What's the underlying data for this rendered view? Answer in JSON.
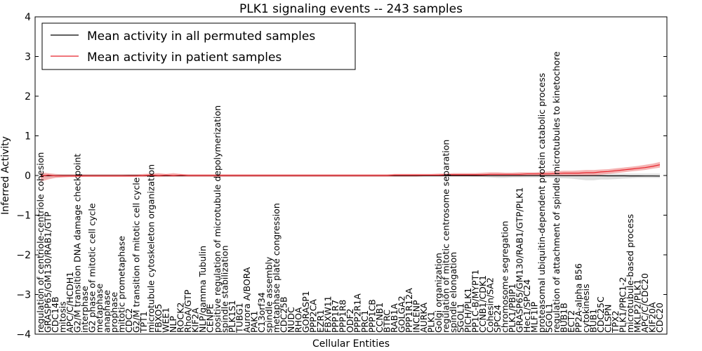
{
  "chart_data": {
    "type": "line",
    "title": "PLK1 signaling events -- 243 samples",
    "xlabel": "Cellular Entities",
    "ylabel": "Inferred Activity",
    "ylim": [
      -4,
      4
    ],
    "yticks": [
      "4",
      "3",
      "2",
      "1",
      "0",
      "−1",
      "−2",
      "−3",
      "−4"
    ],
    "ytick_values": [
      4,
      3,
      2,
      1,
      0,
      -1,
      -2,
      -3,
      -4
    ],
    "legend_position": "top-left",
    "colors": {
      "permuted": "#000000",
      "patient": "#e8242c",
      "patient_band": "#f29a9a",
      "permuted_band": "#c8c8c8"
    },
    "categories": [
      "regulation of centriole-centriole cohesion",
      "GRASP65/GM130/RAB1/GTP",
      "CDC14B",
      "mitosis",
      "APC/C/HCDH1",
      "G2/M transition DNA damage checkpoint",
      "interphase",
      "G2 phase of mitotic cell cycle",
      "metaphase",
      "anaphase",
      "prophase",
      "mitotic prometaphase",
      "CDC2",
      "G2/M transition of mitotic cell cycle",
      "TPT1",
      "microtubule cytoskeleton organization",
      "FBXO5",
      "WEE1",
      "NLP",
      "ROCK2",
      "RhoA/GTP",
      "KIF2A",
      "NLP/gamma Tubulin",
      "CENPE",
      "positive regulation of microtubule depolymerization",
      "spindle stabilization",
      "PLK1S1",
      "TUBG1",
      "Aurora A/BORA",
      "PAK1",
      "C13orf34",
      "spindle assembly",
      "metaphase plate congression",
      "CDC25B",
      "NUDC",
      "RHOA",
      "GORASP1",
      "PPP2CA",
      "EZR1",
      "FBXW11",
      "PPP1R7",
      "PPP1R8",
      "ODF2",
      "PPP2R1A",
      "PRC1",
      "PPP1CB",
      "CCNB1",
      "BTRC",
      "RAB1A",
      "GOLGA2",
      "PPP1R12A",
      "INCENP",
      "AURKA",
      "PLK1",
      "Golgi organization",
      "regulation of mitotic centrosome separation",
      "spindle elongation",
      "SGOL1",
      "PICH/PLK1",
      "PP1C-B/MYPT1",
      "CCNB1/CDK1",
      "Cohesin/SA2",
      "SPC24",
      "chromosome segregation",
      "PLK1/PBIP1",
      "GRASP65/GM130/RAB1/GTP/PLK1",
      "Hec1/SPC24",
      "MLF1IP",
      "proteasomal ubiquitin-dependent protein catabolic process",
      "SGOL1",
      "regulation of attachment of spindle microtubules to kinetochore",
      "BUB1B",
      "ECT2",
      "PP2A-alpha B56",
      "cytokinesis",
      "BUB1",
      "CDC25C",
      "CLSPN",
      "TPX2",
      "PLK1/PRC1-2",
      "microtubule-based process",
      "MKLP2/PLK1",
      "APC/C/CDC20",
      "KIF20A",
      "CDC20"
    ],
    "series": [
      {
        "name": "Mean activity in all permuted samples",
        "values": [
          0,
          -0.005,
          -0.005,
          -0.004,
          -0.004,
          -0.004,
          -0.003,
          -0.003,
          -0.003,
          -0.003,
          -0.003,
          -0.003,
          -0.002,
          -0.002,
          -0.002,
          -0.002,
          -0.002,
          -0.002,
          -0.002,
          -0.002,
          -0.002,
          -0.002,
          -0.002,
          -0.002,
          -0.002,
          -0.002,
          -0.002,
          -0.002,
          -0.002,
          -0.002,
          -0.002,
          -0.002,
          -0.002,
          -0.002,
          -0.002,
          -0.002,
          -0.002,
          -0.002,
          -0.002,
          -0.002,
          -0.002,
          -0.002,
          -0.002,
          -0.002,
          -0.002,
          -0.002,
          -0.002,
          -0.002,
          -0.002,
          -0.002,
          -0.002,
          -0.002,
          -0.002,
          -0.002,
          -0.002,
          -0.002,
          -0.002,
          -0.002,
          -0.002,
          -0.002,
          -0.003,
          -0.003,
          -0.003,
          -0.003,
          -0.003,
          -0.003,
          -0.003,
          -0.004,
          -0.004,
          -0.004,
          -0.004,
          -0.005,
          -0.005,
          -0.005,
          -0.006,
          -0.006,
          -0.007,
          -0.008,
          -0.008,
          -0.009,
          -0.01,
          -0.011,
          -0.012,
          -0.013,
          -0.015
        ],
        "lower": [
          -0.06,
          -0.06,
          -0.05,
          -0.04,
          -0.03,
          -0.03,
          -0.03,
          -0.03,
          -0.03,
          -0.03,
          -0.03,
          -0.03,
          -0.03,
          -0.03,
          -0.03,
          -0.03,
          -0.03,
          -0.03,
          -0.04,
          -0.03,
          -0.03,
          -0.03,
          -0.03,
          -0.03,
          -0.03,
          -0.03,
          -0.03,
          -0.03,
          -0.03,
          -0.03,
          -0.03,
          -0.03,
          -0.03,
          -0.03,
          -0.03,
          -0.03,
          -0.03,
          -0.03,
          -0.03,
          -0.03,
          -0.03,
          -0.03,
          -0.03,
          -0.03,
          -0.03,
          -0.03,
          -0.03,
          -0.03,
          -0.03,
          -0.03,
          -0.03,
          -0.03,
          -0.03,
          -0.03,
          -0.03,
          -0.03,
          -0.03,
          -0.03,
          -0.03,
          -0.04,
          -0.04,
          -0.05,
          -0.06,
          -0.06,
          -0.05,
          -0.05,
          -0.05,
          -0.05,
          -0.05,
          -0.06,
          -0.07,
          -0.07,
          -0.08,
          -0.1,
          -0.12,
          -0.12,
          -0.1,
          -0.1,
          -0.09,
          -0.08,
          -0.07,
          -0.06,
          -0.06,
          -0.06,
          -0.06
        ],
        "upper": [
          0.04,
          0.04,
          0.03,
          0.03,
          0.03,
          0.02,
          0.02,
          0.02,
          0.02,
          0.02,
          0.02,
          0.02,
          0.02,
          0.02,
          0.02,
          0.02,
          0.02,
          0.02,
          0.02,
          0.02,
          0.02,
          0.02,
          0.02,
          0.02,
          0.02,
          0.02,
          0.02,
          0.02,
          0.02,
          0.02,
          0.02,
          0.02,
          0.02,
          0.02,
          0.02,
          0.02,
          0.02,
          0.02,
          0.02,
          0.02,
          0.02,
          0.02,
          0.02,
          0.02,
          0.02,
          0.02,
          0.02,
          0.02,
          0.02,
          0.02,
          0.02,
          0.02,
          0.02,
          0.02,
          0.02,
          0.02,
          0.02,
          0.02,
          0.02,
          0.02,
          0.02,
          0.03,
          0.03,
          0.03,
          0.03,
          0.03,
          0.03,
          0.03,
          0.03,
          0.03,
          0.03,
          0.04,
          0.04,
          0.04,
          0.05,
          0.05,
          0.05,
          0.05,
          0.05,
          0.05,
          0.05,
          0.05,
          0.05,
          0.05,
          0.05
        ]
      },
      {
        "name": "Mean activity in patient samples",
        "values": [
          -0.02,
          0.01,
          -0.01,
          -0.01,
          -0.01,
          -0.01,
          -0.01,
          -0.01,
          -0.01,
          -0.01,
          -0.01,
          -0.01,
          -0.01,
          -0.01,
          0,
          0.01,
          0,
          0.01,
          0,
          0.01,
          0,
          0,
          0,
          0,
          0,
          0,
          0,
          0,
          0,
          0,
          0,
          0,
          0,
          0,
          0,
          0,
          0,
          0,
          0,
          0,
          0,
          0,
          0,
          0,
          0,
          0,
          0,
          0,
          0.01,
          0.01,
          0.01,
          0.01,
          0.01,
          0.01,
          0.01,
          0.02,
          0.02,
          0.02,
          0.02,
          0.02,
          0.02,
          0.03,
          0.03,
          0.03,
          0.03,
          0.03,
          0.04,
          0.04,
          0.04,
          0.04,
          0.05,
          0.06,
          0.06,
          0.06,
          0.07,
          0.07,
          0.09,
          0.1,
          0.12,
          0.14,
          0.16,
          0.18,
          0.2,
          0.23,
          0.27
        ],
        "lower": [
          -0.15,
          -0.1,
          -0.06,
          -0.05,
          -0.04,
          -0.04,
          -0.03,
          -0.03,
          -0.03,
          -0.03,
          -0.03,
          -0.03,
          -0.03,
          -0.03,
          -0.03,
          -0.03,
          -0.04,
          -0.03,
          -0.03,
          -0.03,
          -0.03,
          -0.03,
          -0.03,
          -0.03,
          -0.03,
          -0.03,
          -0.03,
          -0.03,
          -0.03,
          -0.03,
          -0.03,
          -0.03,
          -0.03,
          -0.03,
          -0.03,
          -0.03,
          -0.03,
          -0.03,
          -0.03,
          -0.03,
          -0.03,
          -0.03,
          -0.03,
          -0.03,
          -0.03,
          -0.03,
          -0.03,
          -0.03,
          -0.03,
          -0.03,
          -0.03,
          -0.03,
          -0.02,
          -0.02,
          -0.02,
          -0.02,
          -0.02,
          -0.02,
          -0.02,
          -0.02,
          -0.02,
          -0.02,
          -0.02,
          -0.02,
          -0.02,
          -0.02,
          -0.01,
          -0.01,
          -0.01,
          -0.01,
          0,
          0,
          0,
          0,
          0,
          0,
          0.02,
          0.04,
          0.06,
          0.08,
          0.1,
          0.12,
          0.14,
          0.17,
          0.2
        ],
        "upper": [
          0.08,
          0.06,
          0.04,
          0.03,
          0.03,
          0.03,
          0.03,
          0.03,
          0.03,
          0.03,
          0.03,
          0.03,
          0.03,
          0.03,
          0.04,
          0.05,
          0.06,
          0.04,
          0.06,
          0.04,
          0.03,
          0.03,
          0.03,
          0.03,
          0.03,
          0.03,
          0.03,
          0.03,
          0.03,
          0.03,
          0.03,
          0.03,
          0.03,
          0.03,
          0.03,
          0.03,
          0.03,
          0.03,
          0.03,
          0.03,
          0.03,
          0.03,
          0.03,
          0.03,
          0.03,
          0.03,
          0.03,
          0.03,
          0.04,
          0.04,
          0.04,
          0.04,
          0.04,
          0.04,
          0.05,
          0.05,
          0.06,
          0.06,
          0.06,
          0.06,
          0.07,
          0.08,
          0.08,
          0.07,
          0.07,
          0.08,
          0.08,
          0.08,
          0.09,
          0.1,
          0.11,
          0.12,
          0.12,
          0.13,
          0.14,
          0.14,
          0.15,
          0.16,
          0.18,
          0.2,
          0.22,
          0.24,
          0.27,
          0.3,
          0.34
        ]
      }
    ]
  }
}
